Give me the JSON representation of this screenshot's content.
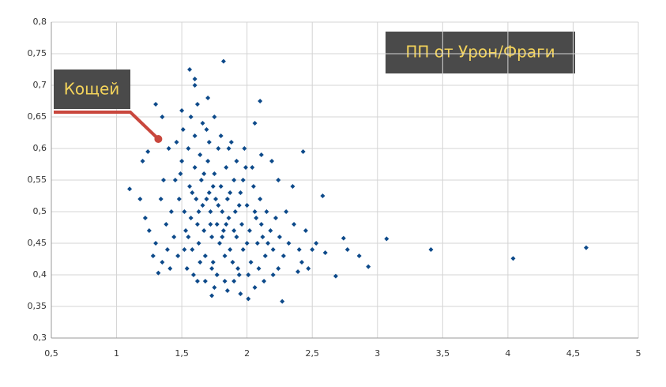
{
  "chart_data": {
    "type": "scatter",
    "title": "ПП от Урон/Фраги",
    "color": "#0d4a8a",
    "grid": true,
    "annotation": {
      "text": "Кощей",
      "x": 1.32,
      "y": 0.615
    },
    "xlim": [
      0.5,
      5
    ],
    "ylim": [
      0.3,
      0.8
    ],
    "xticks": [
      {
        "value": 0.5,
        "label": "0,5"
      },
      1,
      {
        "value": 1.5,
        "label": "1,5"
      },
      2,
      {
        "value": 2.5,
        "label": "2,5"
      },
      3,
      {
        "value": 3.5,
        "label": "3,5"
      },
      4,
      {
        "value": 4.5,
        "label": "4,5"
      },
      5
    ],
    "yticks": [
      {
        "value": 0.3,
        "label": "0,3"
      },
      {
        "value": 0.35,
        "label": "0,35"
      },
      {
        "value": 0.4,
        "label": "0,4"
      },
      {
        "value": 0.45,
        "label": "0,45"
      },
      {
        "value": 0.5,
        "label": "0,5"
      },
      {
        "value": 0.55,
        "label": "0,55"
      },
      {
        "value": 0.6,
        "label": "0,6"
      },
      {
        "value": 0.65,
        "label": "0,65"
      },
      {
        "value": 0.7,
        "label": "0,7"
      },
      {
        "value": 0.75,
        "label": "0,75"
      },
      {
        "value": 0.8,
        "label": "0,8"
      }
    ],
    "x": [
      4.6,
      4.04,
      3.41,
      3.07,
      2.93,
      2.86,
      2.77,
      2.74,
      2.68,
      2.58,
      2.43,
      2.1,
      1.82,
      1.56,
      1.1,
      1.24,
      1.32,
      2.27,
      2.01,
      1.73,
      1.62,
      1.32,
      2.24,
      2.06,
      2.11,
      2.19,
      2.35,
      2.45,
      2.5,
      2.39,
      2.53,
      2.6,
      1.6,
      1.6,
      1.7,
      1.5,
      1.3,
      1.35,
      1.2,
      1.18,
      1.22,
      1.25,
      1.3,
      1.35,
      1.28,
      1.45,
      1.48,
      1.5,
      1.52,
      1.53,
      1.55,
      1.56,
      1.57,
      1.58,
      1.6,
      1.6,
      1.61,
      1.62,
      1.63,
      1.64,
      1.65,
      1.66,
      1.67,
      1.68,
      1.69,
      1.7,
      1.71,
      1.72,
      1.73,
      1.74,
      1.75,
      1.76,
      1.77,
      1.78,
      1.79,
      1.8,
      1.81,
      1.82,
      1.83,
      1.84,
      1.85,
      1.86,
      1.87,
      1.88,
      1.9,
      1.91,
      1.92,
      1.93,
      1.95,
      1.96,
      1.97,
      1.99,
      2.0,
      2.02,
      2.03,
      2.05,
      2.07,
      2.08,
      2.1,
      2.12,
      2.14,
      2.15,
      2.18,
      2.2,
      2.22,
      1.42,
      1.44,
      1.46,
      1.47,
      1.49,
      1.51,
      1.54,
      1.57,
      1.59,
      1.62,
      1.64,
      1.66,
      1.68,
      1.71,
      1.73,
      1.75,
      1.77,
      1.8,
      1.83,
      1.86,
      1.89,
      1.92,
      1.94,
      1.98,
      2.01,
      2.04,
      2.09,
      1.38,
      1.4,
      1.36,
      1.34,
      1.39,
      1.41,
      1.52,
      1.55,
      1.58,
      1.63,
      1.67,
      1.69,
      1.72,
      1.74,
      1.78,
      1.81,
      1.84,
      1.87,
      1.9,
      1.94,
      1.97,
      2.0,
      2.06,
      2.11,
      2.16,
      2.25,
      2.28,
      2.3,
      2.32,
      2.36,
      2.4,
      2.42,
      2.47,
      2.2,
      2.24,
      2.13,
      2.06,
      1.95,
      1.85,
      1.9,
      1.75
    ],
    "values": [
      0.443,
      0.426,
      0.44,
      0.457,
      0.413,
      0.43,
      0.44,
      0.458,
      0.398,
      0.525,
      0.595,
      0.675,
      0.738,
      0.725,
      0.536,
      0.595,
      0.615,
      0.358,
      0.362,
      0.367,
      0.39,
      0.403,
      0.55,
      0.64,
      0.59,
      0.58,
      0.54,
      0.47,
      0.44,
      0.405,
      0.45,
      0.435,
      0.71,
      0.7,
      0.68,
      0.66,
      0.67,
      0.65,
      0.58,
      0.52,
      0.49,
      0.47,
      0.45,
      0.42,
      0.43,
      0.55,
      0.52,
      0.58,
      0.5,
      0.47,
      0.6,
      0.54,
      0.49,
      0.44,
      0.62,
      0.57,
      0.52,
      0.48,
      0.45,
      0.59,
      0.55,
      0.51,
      0.47,
      0.43,
      0.63,
      0.58,
      0.53,
      0.5,
      0.46,
      0.42,
      0.56,
      0.52,
      0.48,
      0.6,
      0.45,
      0.54,
      0.5,
      0.47,
      0.43,
      0.57,
      0.52,
      0.49,
      0.44,
      0.61,
      0.55,
      0.5,
      0.46,
      0.41,
      0.53,
      0.48,
      0.44,
      0.57,
      0.51,
      0.47,
      0.42,
      0.54,
      0.49,
      0.45,
      0.52,
      0.46,
      0.43,
      0.5,
      0.47,
      0.44,
      0.49,
      0.5,
      0.46,
      0.61,
      0.43,
      0.56,
      0.63,
      0.41,
      0.65,
      0.4,
      0.67,
      0.42,
      0.64,
      0.39,
      0.61,
      0.41,
      0.65,
      0.4,
      0.62,
      0.39,
      0.6,
      0.42,
      0.58,
      0.4,
      0.6,
      0.4,
      0.57,
      0.41,
      0.48,
      0.6,
      0.55,
      0.52,
      0.44,
      0.41,
      0.44,
      0.46,
      0.53,
      0.5,
      0.56,
      0.52,
      0.48,
      0.54,
      0.51,
      0.46,
      0.48,
      0.53,
      0.47,
      0.51,
      0.55,
      0.45,
      0.5,
      0.48,
      0.45,
      0.46,
      0.43,
      0.5,
      0.45,
      0.48,
      0.44,
      0.42,
      0.41,
      0.4,
      0.41,
      0.39,
      0.38,
      0.37,
      0.375,
      0.39,
      0.38
    ]
  }
}
